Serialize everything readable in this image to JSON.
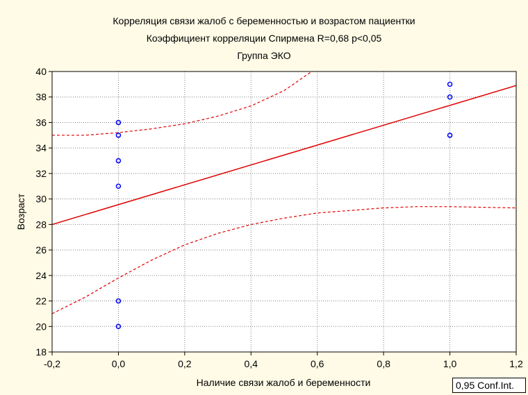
{
  "chart_data": {
    "type": "scatter",
    "title_lines": [
      "Корреляция связи жалоб с беременностью и возрастом пациентки",
      "Коэффициент корреляции Спирмена R=0,68 p<0,05",
      "Группа ЭКО"
    ],
    "xlabel": "Наличие связи жалоб и беременности",
    "ylabel": "Возраст",
    "xlim": [
      -0.2,
      1.2
    ],
    "ylim": [
      18,
      40
    ],
    "x_ticks": [
      "-0,2",
      "0,0",
      "0,2",
      "0,4",
      "0,6",
      "0,8",
      "1,0",
      "1,2"
    ],
    "y_ticks": [
      "18",
      "20",
      "22",
      "24",
      "26",
      "28",
      "30",
      "32",
      "34",
      "36",
      "38",
      "40"
    ],
    "grid": true,
    "points": [
      {
        "x": 0,
        "y": 36
      },
      {
        "x": 0,
        "y": 35
      },
      {
        "x": 0,
        "y": 33
      },
      {
        "x": 0,
        "y": 31
      },
      {
        "x": 0,
        "y": 22
      },
      {
        "x": 0,
        "y": 20
      },
      {
        "x": 1,
        "y": 39
      },
      {
        "x": 1,
        "y": 38
      },
      {
        "x": 1,
        "y": 35
      }
    ],
    "regression_line": {
      "x": [
        -0.2,
        1.2
      ],
      "y": [
        28.0,
        38.9
      ]
    },
    "conf_band_upper": {
      "x": [
        -0.2,
        -0.1,
        0.0,
        0.1,
        0.2,
        0.3,
        0.4,
        0.5,
        0.6
      ],
      "y": [
        35.0,
        35.0,
        35.2,
        35.5,
        35.9,
        36.5,
        37.3,
        38.5,
        40.3
      ]
    },
    "conf_band_lower": {
      "x": [
        -0.2,
        -0.1,
        0.0,
        0.1,
        0.2,
        0.3,
        0.4,
        0.5,
        0.6,
        0.7,
        0.8,
        0.9,
        1.0,
        1.1,
        1.2
      ],
      "y": [
        21.0,
        22.3,
        23.8,
        25.2,
        26.4,
        27.3,
        28.0,
        28.5,
        28.9,
        29.1,
        29.3,
        29.4,
        29.4,
        29.35,
        29.3
      ]
    },
    "legend": "0,95 Conf.Int.",
    "legend_position": "bottom-right",
    "colors": {
      "points": "#0000ff",
      "regression": "#e00000",
      "conf_band": "#e00000",
      "grid": "#808080",
      "plot_background": "#ffffff",
      "page_background": "#fffbe6"
    }
  }
}
